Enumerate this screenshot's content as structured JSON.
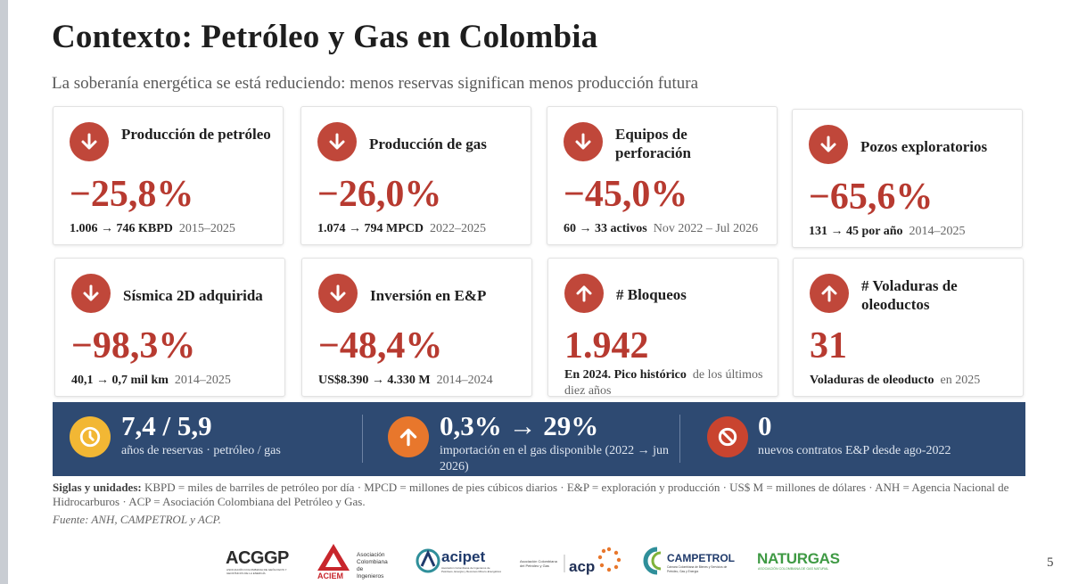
{
  "header": {
    "title": "Contexto: Petróleo y Gas en Colombia",
    "subtitle": "La soberanía energética se está reduciendo: menos reservas significan menos producción futura"
  },
  "colors": {
    "down_accent": "#c0473a",
    "value_red": "#b73a30",
    "banner_bg": "#2e4a72",
    "yellow_icon": "#f2b734",
    "orange_icon": "#e8772c",
    "red_icon": "#c9442f"
  },
  "cards": [
    {
      "icon": "arrow-down-icon",
      "label": "Producción de petróleo",
      "value": "−25,8%",
      "detail_strong": "1.006 → 746 KBPD",
      "detail_rest": "2015–2025"
    },
    {
      "icon": "arrow-down-icon",
      "label": "Producción de gas",
      "value": "−26,0%",
      "detail_strong": "1.074 → 794 MPCD",
      "detail_rest": "2022–2025"
    },
    {
      "icon": "arrow-down-icon",
      "label": "Equipos de perforación",
      "value": "−45,0%",
      "detail_strong": "60 → 33 activos",
      "detail_rest": "Nov 2022 – Jul 2026"
    },
    {
      "icon": "arrow-down-icon",
      "label": "Pozos exploratorios",
      "value": "−65,6%",
      "detail_strong": "131 → 45 por año",
      "detail_rest": "2014–2025"
    },
    {
      "icon": "arrow-down-icon",
      "label": "Sísmica 2D adquirida",
      "value": "−98,3%",
      "detail_strong": "40,1 → 0,7 mil km",
      "detail_rest": "2014–2025"
    },
    {
      "icon": "arrow-down-icon",
      "label": "Inversión en E&P",
      "value": "−48,4%",
      "detail_strong": "US$8.390 → 4.330 M",
      "detail_rest": "2014–2024"
    },
    {
      "icon": "arrow-up-icon",
      "label": "# Bloqueos",
      "value": "1.942",
      "detail_strong": "En 2024. Pico histórico",
      "detail_rest": "de los últimos diez años"
    },
    {
      "icon": "arrow-up-icon",
      "label": "# Voladuras de oleoductos",
      "value": "31",
      "detail_strong": "Voladuras de oleoducto",
      "detail_rest": "en 2025"
    }
  ],
  "banner": [
    {
      "icon": "clock-icon",
      "value": "7,4 / 5,9",
      "desc": "años de reservas · petróleo / gas"
    },
    {
      "icon": "arrow-up-icon",
      "value": "0,3% → 29%",
      "desc": "importación en el gas disponible (2022 → jun 2026)"
    },
    {
      "icon": "no-entry-icon",
      "value": "0",
      "desc": "nuevos contratos E&P desde ago-2022"
    }
  ],
  "notes": {
    "label": "Siglas y unidades:",
    "text": "KBPD = miles de barriles de petróleo por día · MPCD = millones de pies cúbicos diarios · E&P = exploración y producción · US$ M = millones de dólares · ANH = Agencia Nacional de Hidrocarburos · ACP = Asociación Colombiana del Petróleo y Gas.",
    "source": "Fuente: ANH, CAMPETROL y ACP."
  },
  "logos": {
    "acggp": "ACGGP",
    "acggp_sub": "ASOCIACIÓN COLOMBIANA DE GEÓLOGOS Y GEOFÍSICOS DE LA ENERGÍA",
    "aciem": "ACIEM",
    "aciem_sub": "Asociación Colombiana de Ingenieros",
    "acipet": "acipet",
    "acipet_sub": "Asociación Colombiana de Ingenieros de Petróleos, Energía y Recursos Minero-Energéticos",
    "acp": "acp",
    "acp_sub": "Asociación Colombiana del Petróleo y Gas",
    "campetrol": "CAMPETROL",
    "campetrol_sub": "Cámara Colombiana de Bienes y Servicios de Petróleo, Gas y Energía",
    "naturgas": "NATURGAS",
    "naturgas_sub": "ASOCIACIÓN COLOMBIANA DE GAS NATURAL"
  },
  "page_number": "5"
}
